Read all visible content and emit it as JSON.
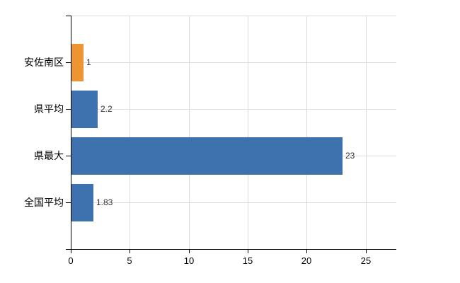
{
  "chart_data": {
    "type": "bar",
    "orientation": "horizontal",
    "title": "",
    "categories": [
      "安佐南区",
      "県平均",
      "県最大",
      "全国平均"
    ],
    "values": [
      1,
      2.2,
      23,
      1.83
    ],
    "value_labels": [
      "1",
      "2.2",
      "23",
      "1.83"
    ],
    "bar_colors": [
      "#EF9432",
      "#3E72AE",
      "#3E72AE",
      "#3E72AE"
    ],
    "x_ticks": [
      0,
      5,
      10,
      15,
      20,
      25
    ],
    "x_tick_labels": [
      "0",
      "5",
      "10",
      "15",
      "20",
      "25"
    ],
    "xlim": [
      0,
      27.6
    ],
    "grid": true,
    "legend": false,
    "colors": {
      "bar_orange": "#EF9432",
      "bar_blue": "#3E72AE",
      "grid": "#DCDCDC",
      "axis": "#000000",
      "value_label": "#333333",
      "tick_label": "#000000",
      "background": "#FFFFFF"
    }
  }
}
